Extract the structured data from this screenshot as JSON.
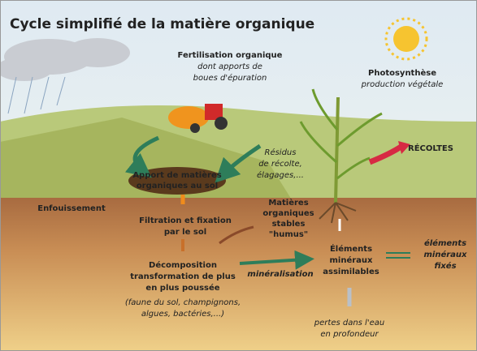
{
  "title": "Cycle simplifié de la matière organique",
  "labels": {
    "fertilisation": [
      "Fertilisation organique",
      "dont apports de",
      "boues d'épuration"
    ],
    "photosynthese": [
      "Photosynthèse",
      "production végétale"
    ],
    "residus": [
      "Résidus",
      "de récolte,",
      "élagages,..."
    ],
    "recoltes": [
      "RÉCOLTES"
    ],
    "apport": [
      "Apport de matières",
      "organiques au sol"
    ],
    "enfouissement": [
      "Enfouissement"
    ],
    "filtration": [
      "Filtration et fixation",
      "par le sol"
    ],
    "humus": [
      "Matières",
      "organiques",
      "stables",
      "\"humus\""
    ],
    "assimilables": [
      "Éléments",
      "minéraux",
      "assimilables"
    ],
    "fixes": [
      "éléments",
      "minéraux",
      "fixés"
    ],
    "decomposition": [
      "Décomposition",
      "transformation de plus",
      "en plus poussée"
    ],
    "faune": [
      "(faune du sol, champignons,",
      "algues, bactéries,...)"
    ],
    "mineralisation": [
      "minéralisation"
    ],
    "pertes": [
      "pertes dans l'eau",
      "en profondeur"
    ]
  }
}
